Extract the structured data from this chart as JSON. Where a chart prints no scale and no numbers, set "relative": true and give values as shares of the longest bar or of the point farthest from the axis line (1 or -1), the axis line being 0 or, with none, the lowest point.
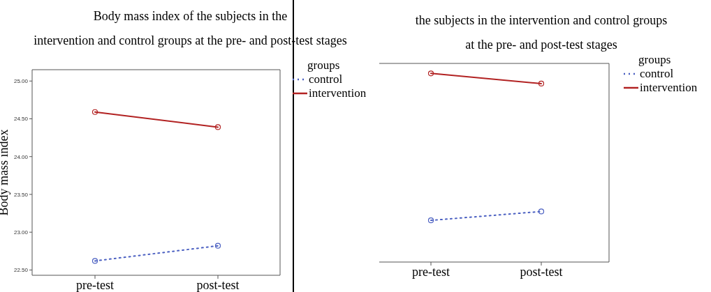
{
  "chart_data": [
    {
      "type": "line",
      "title": "Body mass index of the subjects in the\nintervention and control groups at the pre- and post-test stages",
      "ylabel": "Body mass index",
      "categories": [
        "pre-test",
        "post-test"
      ],
      "series": [
        {
          "name": "control",
          "color": "#4a5fc1",
          "values": [
            22.62,
            22.82
          ],
          "line_style": "dotted"
        },
        {
          "name": "intervention",
          "color": "#b22222",
          "values": [
            24.59,
            24.39
          ],
          "line_style": "solid"
        }
      ],
      "ylim": [
        22.43,
        25.15
      ],
      "yticks": [
        {
          "value": 22.5,
          "label": "22.50"
        },
        {
          "value": 23,
          "label": "23.00"
        },
        {
          "value": 23.5,
          "label": "23.50"
        },
        {
          "value": 24,
          "label": "24.00"
        },
        {
          "value": 24.5,
          "label": "24.50"
        },
        {
          "value": 25,
          "label": "25.00"
        }
      ],
      "legend": "right",
      "legend_title": "groups",
      "marker": "circle"
    },
    {
      "type": "line",
      "title": "the subjects in the intervention and control groups\nat the pre- and post-test stages",
      "categories": [
        "pre-test",
        "post-test"
      ],
      "relative": true,
      "series": [
        {
          "name": "control",
          "color": "#4a5fc1",
          "values": [
            0.221,
            0.268
          ],
          "line_style": "dotted"
        },
        {
          "name": "intervention",
          "color": "#b22222",
          "values": [
            1,
            0.946
          ],
          "line_style": "solid"
        }
      ],
      "legend": "right",
      "legend_title": "groups",
      "marker": "circle"
    }
  ]
}
